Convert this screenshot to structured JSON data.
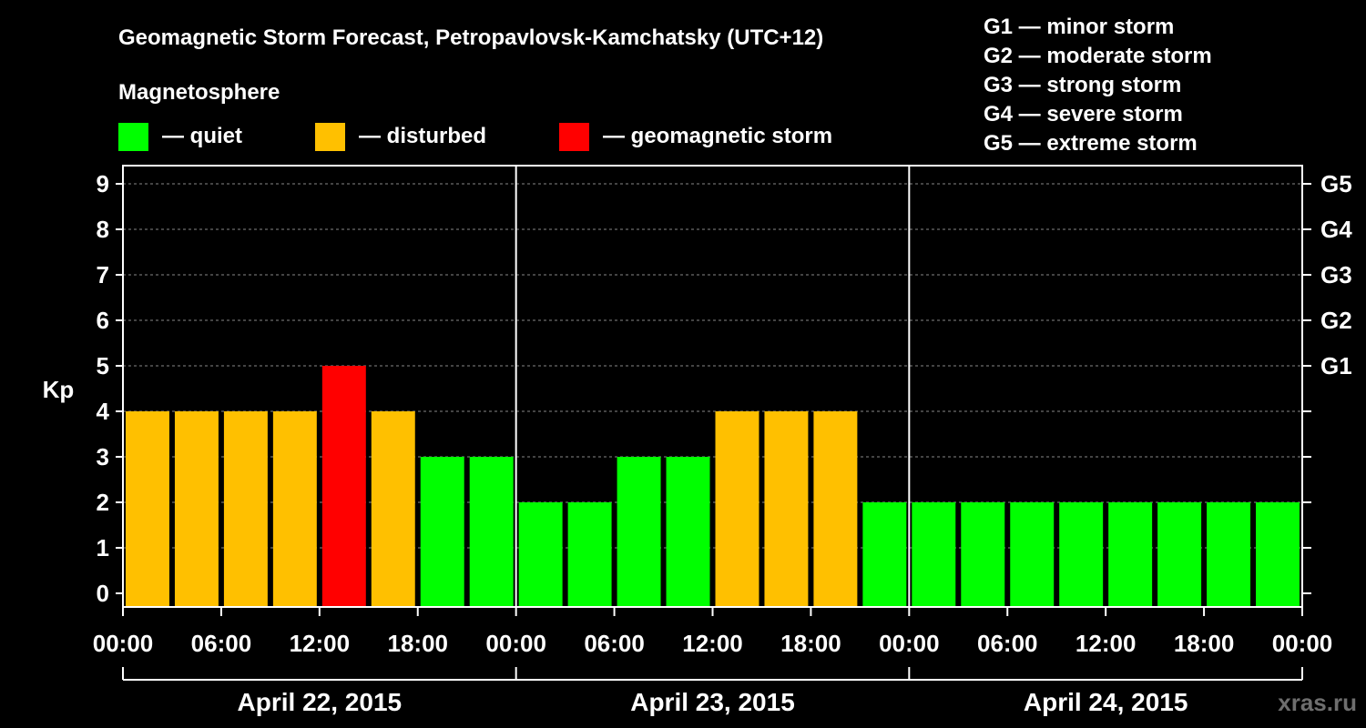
{
  "chart_data": {
    "type": "bar",
    "title": "Geomagnetic Storm Forecast, Petropavlovsk-Kamchatsky (UTC+12)",
    "ylabel": "Kp",
    "ylim": [
      0,
      9
    ],
    "y_ticks": [
      "0",
      "1",
      "2",
      "3",
      "4",
      "5",
      "6",
      "7",
      "8",
      "9"
    ],
    "right_ticks": [
      {
        "value": 5,
        "label": "G1"
      },
      {
        "value": 6,
        "label": "G2"
      },
      {
        "value": 7,
        "label": "G3"
      },
      {
        "value": 8,
        "label": "G4"
      },
      {
        "value": 9,
        "label": "G5"
      }
    ],
    "x_tick_labels": [
      "00:00",
      "06:00",
      "12:00",
      "18:00",
      "00:00",
      "06:00",
      "12:00",
      "18:00",
      "00:00",
      "06:00",
      "12:00",
      "18:00",
      "00:00"
    ],
    "days": [
      "April 22, 2015",
      "April 23, 2015",
      "April 24, 2015"
    ],
    "interval_hours": 3,
    "values": [
      4,
      4,
      4,
      4,
      5,
      4,
      3,
      3,
      2,
      2,
      3,
      3,
      4,
      4,
      4,
      2,
      2,
      2,
      2,
      2,
      2,
      2,
      2,
      2
    ],
    "grid": true,
    "colors": {
      "quiet": "#00ff00",
      "disturbed": "#ffc000",
      "storm": "#ff0000"
    },
    "legend": {
      "heading": "Magnetosphere",
      "items": [
        {
          "key": "quiet",
          "label": "— quiet"
        },
        {
          "key": "disturbed",
          "label": "— disturbed"
        },
        {
          "key": "storm",
          "label": "— geomagnetic storm"
        }
      ],
      "placement": "top-left"
    },
    "storm_scale": [
      "G1 — minor storm",
      "G2 — moderate storm",
      "G3 — strong storm",
      "G4 — severe storm",
      "G5 — extreme storm"
    ]
  },
  "watermark": "xras.ru"
}
